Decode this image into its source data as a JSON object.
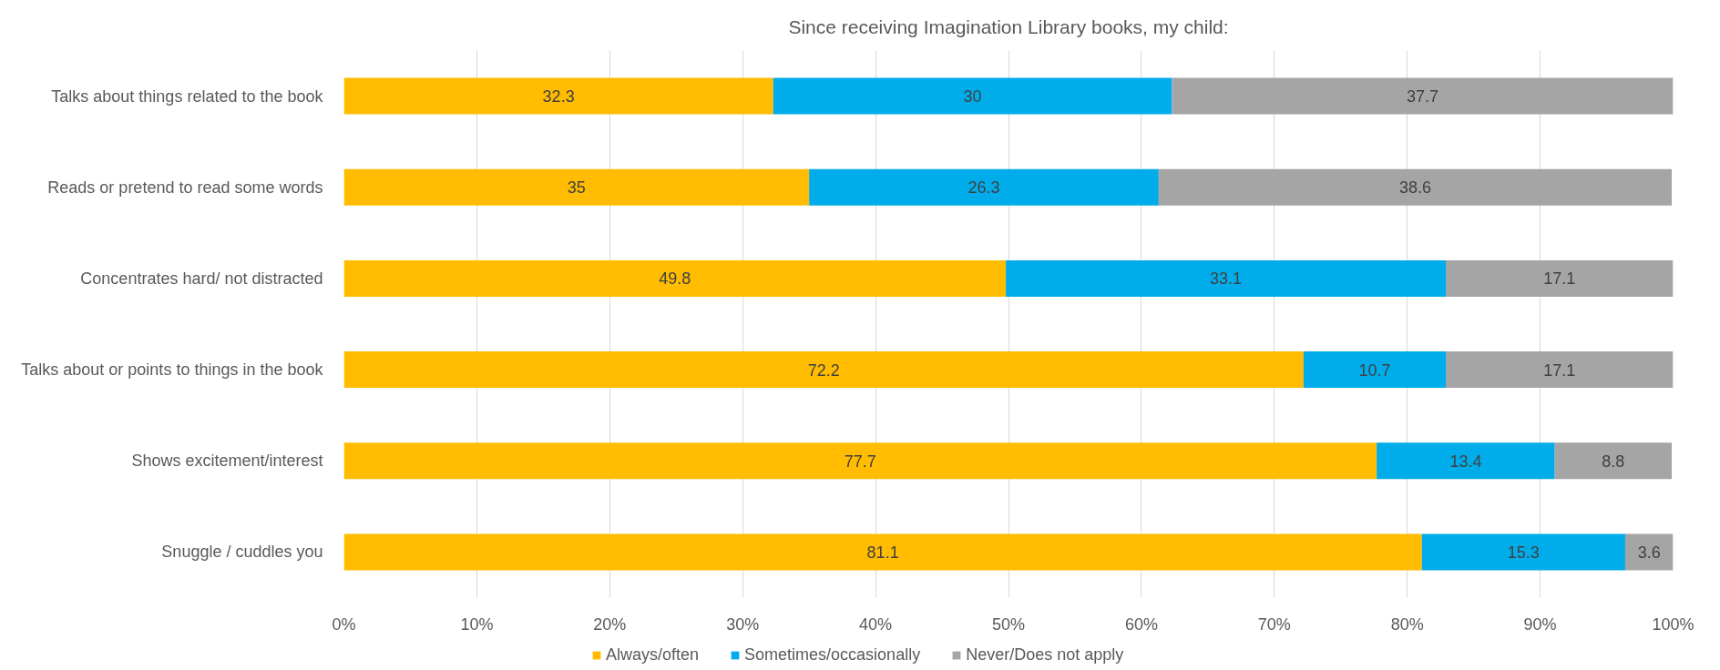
{
  "chart_data": {
    "type": "bar",
    "orientation": "horizontal",
    "stacked": true,
    "title": "Since receiving Imagination Library books, my child:",
    "categories": [
      "Talks about things related to the book",
      "Reads or pretend to read some words",
      "Concentrates hard/ not distracted",
      "Talks about or points to things in the book",
      "Shows excitement/interest",
      "Snuggle / cuddles you"
    ],
    "series": [
      {
        "name": "Always/often",
        "color": "#FFBC00",
        "values": [
          32.3,
          35,
          49.8,
          72.2,
          77.7,
          81.1
        ]
      },
      {
        "name": "Sometimes/occasionally",
        "color": "#00ADEA",
        "values": [
          30,
          26.3,
          33.1,
          10.7,
          13.4,
          15.3
        ]
      },
      {
        "name": "Never/Does not apply",
        "color": "#A5A5A5",
        "values": [
          37.7,
          38.6,
          17.1,
          17.1,
          8.8,
          3.6
        ]
      }
    ],
    "xlim": [
      0,
      100
    ],
    "xticks": [
      {
        "value": 0,
        "label": "0%"
      },
      {
        "value": 10,
        "label": "10%"
      },
      {
        "value": 20,
        "label": "20%"
      },
      {
        "value": 30,
        "label": "30%"
      },
      {
        "value": 40,
        "label": "40%"
      },
      {
        "value": 50,
        "label": "50%"
      },
      {
        "value": 60,
        "label": "60%"
      },
      {
        "value": 70,
        "label": "70%"
      },
      {
        "value": 80,
        "label": "80%"
      },
      {
        "value": 90,
        "label": "90%"
      },
      {
        "value": 100,
        "label": "100%"
      }
    ],
    "grid": "x",
    "legend": "bottom",
    "data_labels": true
  }
}
